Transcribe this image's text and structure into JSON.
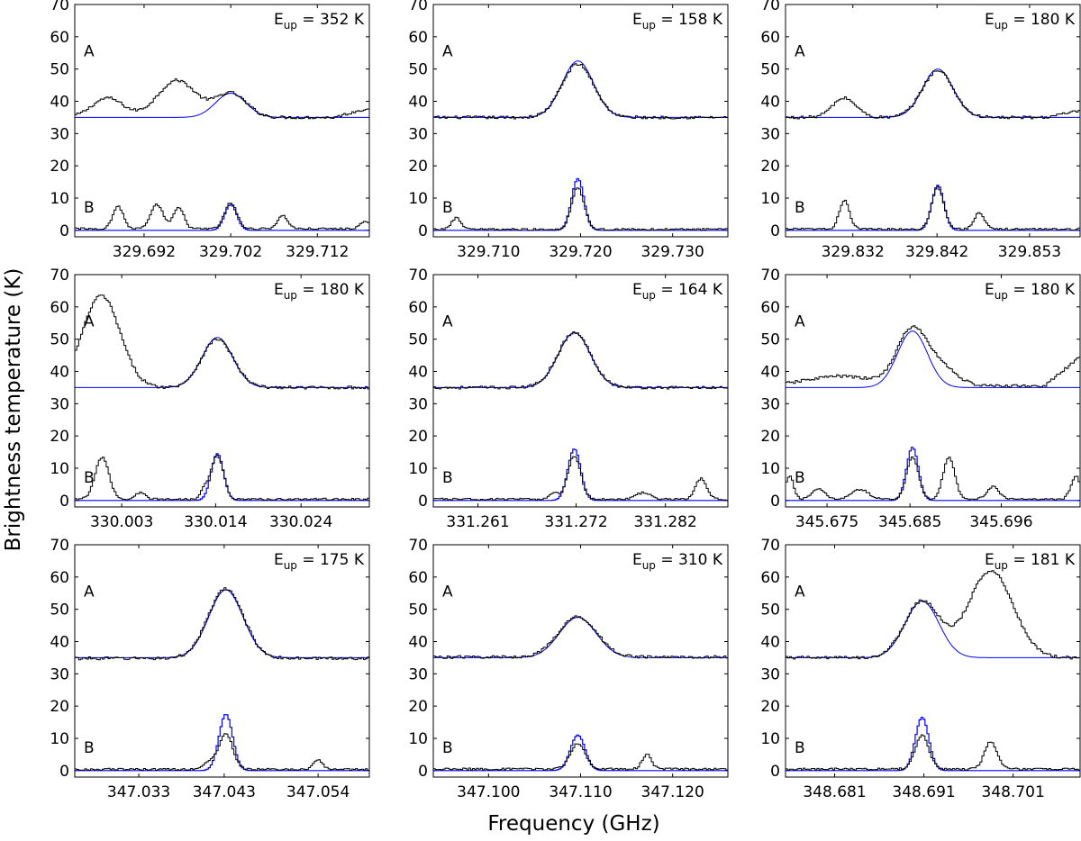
{
  "figure": {
    "xlabel": "Frequency (GHz)",
    "ylabel": "Brightness temperature (K)"
  },
  "colors": {
    "observed": "#000000",
    "model": "#0000ff"
  },
  "chart_data": [
    {
      "type": "line",
      "eup": {
        "prefix": "E",
        "sub": "up",
        "value": " = 352 K"
      },
      "xlim": [
        329.684,
        329.718
      ],
      "ylim": [
        -2,
        70
      ],
      "yticks": [
        0,
        10,
        20,
        30,
        40,
        50,
        60,
        70
      ],
      "xticks": [
        329.692,
        329.702,
        329.712
      ],
      "xtick_labels": [
        "329.692",
        "329.702",
        "329.712"
      ],
      "labels": {
        "A": "A",
        "B": "B"
      },
      "lines": [
        {
          "center": 329.702,
          "width": 0.00175,
          "a_model": 7.5,
          "a_obs": 7.5,
          "b_model": 8.0,
          "b_obs": 8.0
        }
      ],
      "features_A": [
        {
          "x": 329.6878,
          "amp": 6,
          "w": 0.0018
        },
        {
          "x": 329.6958,
          "amp": 11.5,
          "w": 0.0022
        }
      ],
      "features_B": [
        {
          "x": 329.689,
          "amp": 7,
          "w": 0.0006
        },
        {
          "x": 329.6935,
          "amp": 7.5,
          "w": 0.0007
        },
        {
          "x": 329.696,
          "amp": 6.5,
          "w": 0.0006
        },
        {
          "x": 329.708,
          "amp": 4,
          "w": 0.0006
        },
        {
          "x": 329.7175,
          "amp": 2,
          "w": 0.0006
        }
      ],
      "baseline_A": 35,
      "baseline_B": 0.5,
      "end_rise_A": 3
    },
    {
      "type": "line",
      "eup": {
        "prefix": "E",
        "sub": "up",
        "value": " = 158 K"
      },
      "xlim": [
        329.704,
        329.736
      ],
      "ylim": [
        -2,
        70
      ],
      "yticks": [
        0,
        10,
        20,
        30,
        40,
        50,
        60,
        70
      ],
      "xticks": [
        329.71,
        329.72,
        329.73
      ],
      "xtick_labels": [
        "329.710",
        "329.720",
        "329.730"
      ],
      "labels": {
        "A": "A",
        "B": "B"
      },
      "lines": [
        {
          "center": 329.7197,
          "width": 0.0017,
          "a_model": 17.5,
          "a_obs": 16.5,
          "b_model": 16.0,
          "b_obs": 13.0
        }
      ],
      "features_A": [],
      "features_B": [
        {
          "x": 329.7065,
          "amp": 3.5,
          "w": 0.0005
        }
      ],
      "baseline_A": 35,
      "baseline_B": 0.3,
      "end_rise_A": 0
    },
    {
      "type": "line",
      "eup": {
        "prefix": "E",
        "sub": "up",
        "value": " = 180 K"
      },
      "xlim": [
        329.824,
        329.859
      ],
      "ylim": [
        -2,
        70
      ],
      "yticks": [
        0,
        10,
        20,
        30,
        40,
        50,
        60,
        70
      ],
      "xticks": [
        329.832,
        329.842,
        329.853
      ],
      "xtick_labels": [
        "329.832",
        "329.842",
        "329.853"
      ],
      "labels": {
        "A": "A",
        "B": "B"
      },
      "lines": [
        {
          "center": 329.8421,
          "width": 0.0018,
          "a_model": 15.0,
          "a_obs": 14.5,
          "b_model": 14.0,
          "b_obs": 13.0
        }
      ],
      "features_A": [
        {
          "x": 329.831,
          "amp": 6,
          "w": 0.0014
        }
      ],
      "features_B": [
        {
          "x": 329.831,
          "amp": 9,
          "w": 0.0006
        },
        {
          "x": 329.847,
          "amp": 5,
          "w": 0.0006
        }
      ],
      "baseline_A": 35,
      "baseline_B": 0.4,
      "end_rise_A": 2
    },
    {
      "type": "line",
      "eup": {
        "prefix": "E",
        "sub": "up",
        "value": " = 180 K"
      },
      "xlim": [
        329.9975,
        330.032
      ],
      "ylim": [
        -2,
        70
      ],
      "yticks": [
        0,
        10,
        20,
        30,
        40,
        50,
        60,
        70
      ],
      "xticks": [
        330.003,
        330.014,
        330.024
      ],
      "xtick_labels": [
        "330.003",
        "330.014",
        "330.024"
      ],
      "labels": {
        "A": "A",
        "B": "B"
      },
      "lines": [
        {
          "center": 330.0142,
          "width": 0.0018,
          "a_model": 15.5,
          "a_obs": 15.0,
          "b_model": 14.5,
          "b_obs": 13.5
        }
      ],
      "features_A": [
        {
          "x": 330.0006,
          "amp": 28.5,
          "w": 0.0022
        }
      ],
      "features_B": [
        {
          "x": 330.0007,
          "amp": 13,
          "w": 0.0008
        },
        {
          "x": 330.0052,
          "amp": 2,
          "w": 0.0006
        },
        {
          "x": 330.0127,
          "amp": 3,
          "w": 0.0005
        }
      ],
      "baseline_A": 35,
      "baseline_B": 0.4,
      "end_rise_A": 0
    },
    {
      "type": "line",
      "eup": {
        "prefix": "E",
        "sub": "up",
        "value": " = 164 K"
      },
      "xlim": [
        331.256,
        331.289
      ],
      "ylim": [
        -2,
        70
      ],
      "yticks": [
        0,
        10,
        20,
        30,
        40,
        50,
        60,
        70
      ],
      "xticks": [
        331.261,
        331.272,
        331.282
      ],
      "xtick_labels": [
        "331.261",
        "331.272",
        "331.282"
      ],
      "labels": {
        "A": "A",
        "B": "B"
      },
      "lines": [
        {
          "center": 331.2718,
          "width": 0.0018,
          "a_model": 17.0,
          "a_obs": 17.0,
          "b_model": 16.0,
          "b_obs": 13.5
        }
      ],
      "features_A": [],
      "features_B": [
        {
          "x": 331.2695,
          "amp": 2,
          "w": 0.0005
        },
        {
          "x": 331.2795,
          "amp": 2,
          "w": 0.0008
        },
        {
          "x": 331.286,
          "amp": 6.5,
          "w": 0.0006
        }
      ],
      "baseline_A": 35,
      "baseline_B": 0.4,
      "end_rise_A": 0
    },
    {
      "type": "line",
      "eup": {
        "prefix": "E",
        "sub": "up",
        "value": " = 180 K"
      },
      "xlim": [
        345.67,
        345.7055
      ],
      "ylim": [
        -2,
        70
      ],
      "yticks": [
        0,
        10,
        20,
        30,
        40,
        50,
        60,
        70
      ],
      "xticks": [
        345.675,
        345.685,
        345.696
      ],
      "xtick_labels": [
        "345.675",
        "345.685",
        "345.696"
      ],
      "labels": {
        "A": "A",
        "B": "B"
      },
      "lines": [
        {
          "center": 345.6853,
          "width": 0.0018,
          "a_model": 17.5,
          "a_obs": 17.5,
          "b_model": 16.5,
          "b_obs": 13.0
        }
      ],
      "features_A": [
        {
          "x": 345.689,
          "amp": 5,
          "w": 0.0018
        },
        {
          "x": 345.6765,
          "amp": 3,
          "w": 0.004
        }
      ],
      "features_B": [
        {
          "x": 345.6705,
          "amp": 7,
          "w": 0.0005
        },
        {
          "x": 345.674,
          "amp": 3,
          "w": 0.0008
        },
        {
          "x": 345.679,
          "amp": 3,
          "w": 0.001
        },
        {
          "x": 345.6897,
          "amp": 13,
          "w": 0.0007
        },
        {
          "x": 345.695,
          "amp": 4,
          "w": 0.0007
        },
        {
          "x": 345.705,
          "amp": 7,
          "w": 0.0006
        }
      ],
      "baseline_A": 35.5,
      "baseline_B": 0.4,
      "end_rise_A": 9
    },
    {
      "type": "line",
      "eup": {
        "prefix": "E",
        "sub": "up",
        "value": " = 175 K"
      },
      "xlim": [
        347.0255,
        347.06
      ],
      "ylim": [
        -2,
        70
      ],
      "yticks": [
        0,
        10,
        20,
        30,
        40,
        50,
        60,
        70
      ],
      "xticks": [
        347.033,
        347.043,
        347.054
      ],
      "xtick_labels": [
        "347.033",
        "347.043",
        "347.054"
      ],
      "labels": {
        "A": "A",
        "B": "B"
      },
      "lines": [
        {
          "center": 347.0432,
          "width": 0.002,
          "a_model": 21.0,
          "a_obs": 21.5,
          "b_model": 17.5,
          "b_obs": 11.0
        }
      ],
      "features_A": [],
      "features_B": [
        {
          "x": 347.0413,
          "amp": 2,
          "w": 0.0008
        },
        {
          "x": 347.054,
          "amp": 3,
          "w": 0.0005
        }
      ],
      "baseline_A": 34.8,
      "baseline_B": 0.4,
      "end_rise_A": 0
    },
    {
      "type": "line",
      "eup": {
        "prefix": "E",
        "sub": "up",
        "value": " = 310 K"
      },
      "xlim": [
        347.094,
        347.126
      ],
      "ylim": [
        -2,
        70
      ],
      "yticks": [
        0,
        10,
        20,
        30,
        40,
        50,
        60,
        70
      ],
      "xticks": [
        347.1,
        347.11,
        347.12
      ],
      "xtick_labels": [
        "347.100",
        "347.110",
        "347.120"
      ],
      "labels": {
        "A": "A",
        "B": "B"
      },
      "lines": [
        {
          "center": 347.1097,
          "width": 0.002,
          "a_model": 12.5,
          "a_obs": 12.5,
          "b_model": 11.0,
          "b_obs": 8.0
        }
      ],
      "features_A": [],
      "features_B": [
        {
          "x": 347.1172,
          "amp": 4.5,
          "w": 0.0005
        }
      ],
      "baseline_A": 35.2,
      "baseline_B": 0.5,
      "end_rise_A": 0
    },
    {
      "type": "line",
      "eup": {
        "prefix": "E",
        "sub": "up",
        "value": " = 181 K"
      },
      "xlim": [
        348.6755,
        348.7085
      ],
      "ylim": [
        -2,
        70
      ],
      "yticks": [
        0,
        10,
        20,
        30,
        40,
        50,
        60,
        70
      ],
      "xticks": [
        348.681,
        348.691,
        348.701
      ],
      "xtick_labels": [
        "348.681",
        "348.691",
        "348.701"
      ],
      "labels": {
        "A": "A",
        "B": "B"
      },
      "lines": [
        {
          "center": 348.6908,
          "width": 0.0019,
          "a_model": 17.5,
          "a_obs": 17.5,
          "b_model": 16.5,
          "b_obs": 10.5
        }
      ],
      "features_A": [
        {
          "x": 348.6985,
          "amp": 27,
          "w": 0.0025
        }
      ],
      "features_B": [
        {
          "x": 348.6985,
          "amp": 8.5,
          "w": 0.0007
        }
      ],
      "baseline_A": 35,
      "baseline_B": 0.5,
      "end_rise_A": 0
    }
  ]
}
